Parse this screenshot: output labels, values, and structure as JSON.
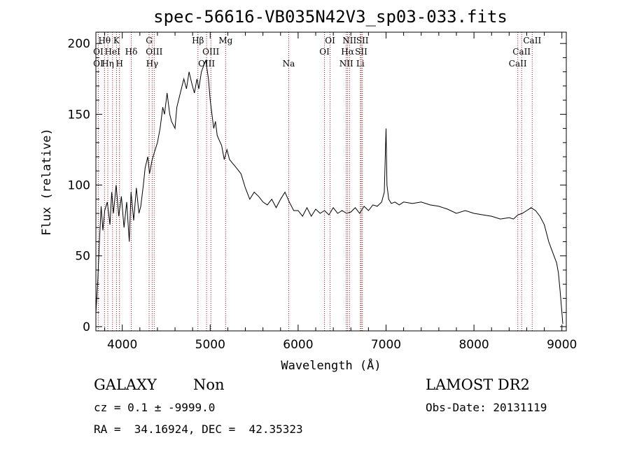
{
  "chart_data": {
    "type": "line",
    "title": "spec-56616-VB035N42V3_sp03-033.fits",
    "xlabel": "Wavelength (Å)",
    "ylabel": "Flux (relative)",
    "xlim": [
      3700,
      9050
    ],
    "ylim": [
      -3,
      208
    ],
    "x_ticks": [
      4000,
      5000,
      6000,
      7000,
      8000,
      9000
    ],
    "x_tick_labels": [
      "4000",
      "5000",
      "6000",
      "7000",
      "8000",
      "9000"
    ],
    "y_ticks": [
      0,
      50,
      100,
      150,
      200
    ],
    "y_tick_labels": [
      "0",
      "50",
      "100",
      "150",
      "200"
    ],
    "grid": false,
    "series": [
      {
        "x": [
          3700,
          3720,
          3740,
          3760,
          3780,
          3800,
          3830,
          3860,
          3880,
          3900,
          3930,
          3960,
          3990,
          4020,
          4050,
          4080,
          4100,
          4130,
          4160,
          4190,
          4210,
          4240,
          4260,
          4290,
          4310,
          4340,
          4360,
          4400,
          4430,
          4460,
          4480,
          4510,
          4540,
          4560,
          4600,
          4620,
          4640,
          4680,
          4700,
          4730,
          4760,
          4790,
          4820,
          4850,
          4870,
          4900,
          4930,
          4950,
          4980,
          5000,
          5020,
          5040,
          5060,
          5080,
          5100,
          5130,
          5160,
          5190,
          5220,
          5260,
          5300,
          5350,
          5400,
          5450,
          5500,
          5550,
          5600,
          5650,
          5700,
          5750,
          5800,
          5850,
          5900,
          5950,
          6000,
          6050,
          6100,
          6150,
          6200,
          6250,
          6300,
          6350,
          6400,
          6450,
          6500,
          6550,
          6600,
          6650,
          6700,
          6750,
          6800,
          6850,
          6900,
          6950,
          6980,
          7000,
          7010,
          7030,
          7060,
          7100,
          7150,
          7200,
          7300,
          7400,
          7500,
          7600,
          7700,
          7800,
          7900,
          8000,
          8100,
          8200,
          8300,
          8400,
          8450,
          8500,
          8550,
          8600,
          8650,
          8700,
          8750,
          8800,
          8850,
          8880,
          8910,
          8940,
          8960,
          8980,
          9000,
          9010
        ],
        "y": [
          10,
          30,
          60,
          85,
          68,
          82,
          88,
          72,
          95,
          80,
          100,
          78,
          92,
          70,
          88,
          60,
          95,
          75,
          98,
          80,
          85,
          100,
          112,
          120,
          108,
          118,
          122,
          130,
          140,
          155,
          150,
          165,
          150,
          145,
          140,
          155,
          160,
          170,
          175,
          168,
          180,
          172,
          165,
          175,
          168,
          180,
          185,
          188,
          175,
          160,
          150,
          140,
          145,
          135,
          132,
          128,
          118,
          125,
          118,
          115,
          112,
          108,
          98,
          90,
          95,
          92,
          88,
          86,
          90,
          84,
          90,
          95,
          88,
          82,
          82,
          78,
          84,
          78,
          83,
          80,
          82,
          79,
          84,
          80,
          82,
          80,
          81,
          84,
          80,
          85,
          82,
          86,
          85,
          88,
          95,
          140,
          100,
          90,
          87,
          88,
          86,
          88,
          87,
          88,
          86,
          85,
          83,
          80,
          82,
          80,
          79,
          78,
          76,
          77,
          76,
          79,
          80,
          82,
          84,
          82,
          78,
          72,
          60,
          55,
          50,
          45,
          38,
          25,
          10,
          2
        ]
      }
    ],
    "spectral_lines": [
      {
        "label": "Hθ",
        "wavelength": 3798,
        "row": 0
      },
      {
        "label": "K",
        "wavelength": 3934,
        "row": 0
      },
      {
        "label": "G",
        "wavelength": 4305,
        "row": 0
      },
      {
        "label": "Hβ",
        "wavelength": 4861,
        "row": 0
      },
      {
        "label": "Mg",
        "wavelength": 5175,
        "row": 0
      },
      {
        "label": "OI",
        "wavelength": 6364,
        "row": 0
      },
      {
        "label": "NII",
        "wavelength": 6584,
        "row": 0
      },
      {
        "label": "SII",
        "wavelength": 6731,
        "row": 0
      },
      {
        "label": "CaII",
        "wavelength": 8662,
        "row": 0
      },
      {
        "label": "OI",
        "wavelength": 3727,
        "row": 1
      },
      {
        "label": "HeI",
        "wavelength": 3889,
        "row": 1
      },
      {
        "label": "Hδ",
        "wavelength": 4102,
        "row": 1
      },
      {
        "label": "OIII",
        "wavelength": 4363,
        "row": 1
      },
      {
        "label": "OIII",
        "wavelength": 5007,
        "row": 1
      },
      {
        "label": "OI",
        "wavelength": 6300,
        "row": 1
      },
      {
        "label": "Hα",
        "wavelength": 6563,
        "row": 1
      },
      {
        "label": "SII",
        "wavelength": 6717,
        "row": 1
      },
      {
        "label": "CaII",
        "wavelength": 8542,
        "row": 1
      },
      {
        "label": "OI",
        "wavelength": 3727,
        "row": 2
      },
      {
        "label": "Hη",
        "wavelength": 3835,
        "row": 2
      },
      {
        "label": "H",
        "wavelength": 3968,
        "row": 2
      },
      {
        "label": "Hγ",
        "wavelength": 4340,
        "row": 2
      },
      {
        "label": "OIII",
        "wavelength": 4959,
        "row": 2
      },
      {
        "label": "Na",
        "wavelength": 5893,
        "row": 2
      },
      {
        "label": "NII",
        "wavelength": 6548,
        "row": 2
      },
      {
        "label": "Li",
        "wavelength": 6708,
        "row": 2
      },
      {
        "label": "CaII",
        "wavelength": 8498,
        "row": 2
      }
    ],
    "colors": {
      "line": "#000000",
      "marker_lines": "#8b1a1a"
    }
  },
  "info": {
    "class_label": "GALAXY",
    "subclass_label": "Non",
    "survey_label": "LAMOST DR2",
    "cz_text": "cz = 0.1 ± -9999.0",
    "obs_date_text": "Obs-Date: 20131119",
    "coords_text": "RA =  34.16924, DEC =  42.35323"
  }
}
